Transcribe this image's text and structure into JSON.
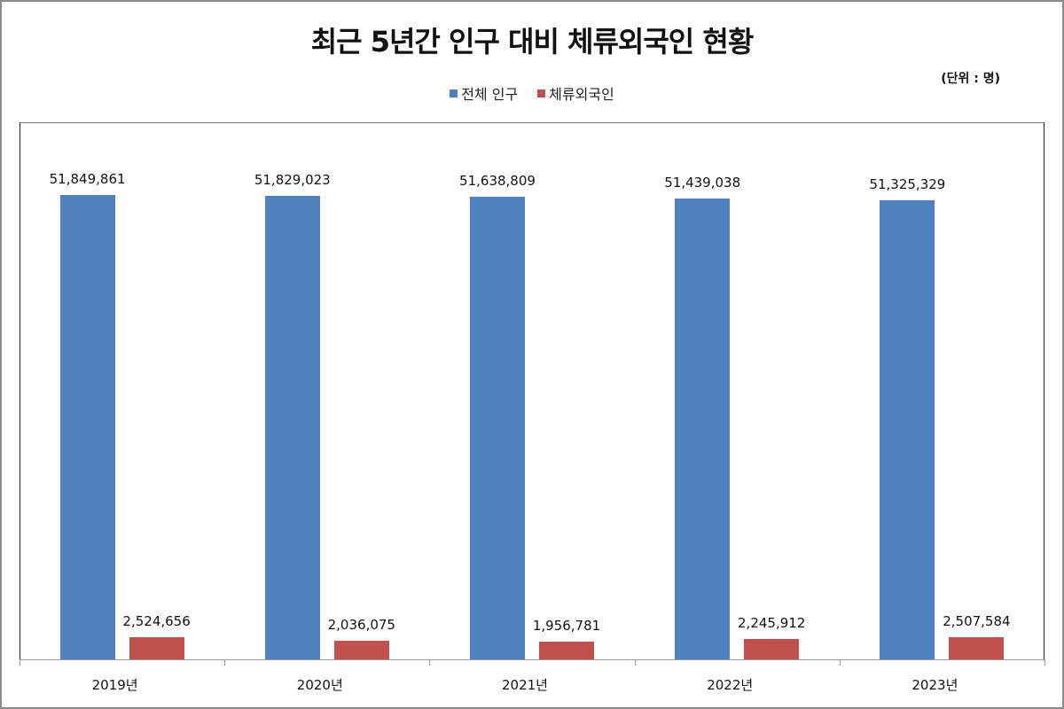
{
  "title": "최근 5년간 인구 대비 체류외국인 현황",
  "unit_label": "(단위 : 명)",
  "legend": [
    {
      "label": "전체 인구",
      "color": "#4f81bd"
    },
    {
      "label": "체류외국인",
      "color": "#c0504d"
    }
  ],
  "colors": {
    "total_population": "#4f81bd",
    "foreign_residents": "#c0504d"
  },
  "chart_data": {
    "type": "bar",
    "title": "최근 5년간 인구 대비 체류외국인 현황",
    "subtitle": "(단위 : 명)",
    "xlabel": "",
    "ylabel": "",
    "categories": [
      "2019년",
      "2020년",
      "2021년",
      "2022년",
      "2023년"
    ],
    "series": [
      {
        "name": "전체 인구",
        "color": "#4f81bd",
        "values": [
          51849861,
          51829023,
          51638809,
          51439038,
          51325329
        ]
      },
      {
        "name": "체류외국인",
        "color": "#c0504d",
        "values": [
          2524656,
          2036075,
          1956781,
          2245912,
          2507584
        ]
      }
    ],
    "labels": {
      "전체 인구": [
        "51,849,861",
        "51,829,023",
        "51,638,809",
        "51,439,038",
        "51,325,329"
      ],
      "체류외국인": [
        "2,524,656",
        "2,036,075",
        "1,956,781",
        "2,245,912",
        "2,507,584"
      ]
    },
    "ylim": [
      0,
      60000000
    ],
    "grid": false,
    "legend_position": "top",
    "y_axis_visible": false
  }
}
